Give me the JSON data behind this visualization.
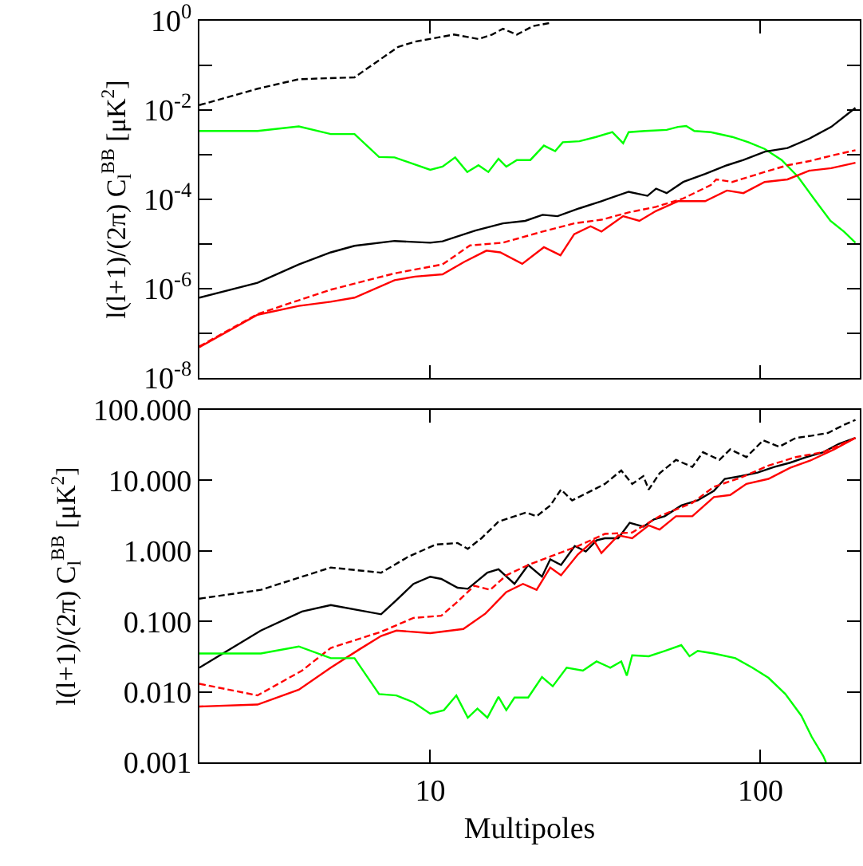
{
  "chart_data": [
    {
      "type": "line",
      "ylabel": "l(l+1)/(2π) C$_{l}$$^{BB}$ [μK$^{2}$]",
      "log": "xy",
      "grid": false,
      "tick_labels": "y",
      "marker": "none",
      "xlim": [
        2,
        200
      ],
      "ylim": [
        1e-08,
        1
      ],
      "xticks": [
        {
          "value": 10,
          "label": null
        },
        {
          "value": 100,
          "label": null
        }
      ],
      "yticks": [
        {
          "value": 1e-08,
          "label": "10$^{-8}$"
        },
        {
          "value": 1e-07,
          "label": null
        },
        {
          "value": 1e-06,
          "label": "10$^{-6}$"
        },
        {
          "value": 1e-05,
          "label": null
        },
        {
          "value": 0.0001,
          "label": "10$^{-4}$"
        },
        {
          "value": 0.001,
          "label": null
        },
        {
          "value": 0.01,
          "label": "10$^{-2}$"
        },
        {
          "value": 0.1,
          "label": null
        },
        {
          "value": 1,
          "label": "10$^{0}$"
        }
      ],
      "series": [
        {
          "color": "#000000",
          "line_style": "dashed",
          "x": [
            2,
            3,
            4,
            5.9,
            8,
            9,
            11.8,
            14,
            15.4,
            16.6,
            18.3,
            20.5,
            23.4
          ],
          "values": [
            0.0129,
            0.03,
            0.049,
            0.054,
            0.26,
            0.34,
            0.49,
            0.39,
            0.49,
            0.66,
            0.49,
            0.76,
            0.91
          ]
        },
        {
          "color": "#00ff00",
          "line_style": "solid",
          "x": [
            2,
            3,
            4,
            5,
            5.9,
            7,
            7.8,
            10,
            10.9,
            11.9,
            12.95,
            14,
            15,
            16.1,
            17,
            18.3,
            20.1,
            22.1,
            23.9,
            25.2,
            28.3,
            31.8,
            35.6,
            38.4,
            39.9,
            44.7,
            52,
            56.3,
            59.6,
            63.1,
            70.8,
            82.2,
            92,
            103,
            116,
            130,
            145,
            163,
            179,
            194
          ],
          "values": [
            0.0034,
            0.0034,
            0.0043,
            0.0029,
            0.0029,
            0.00089,
            0.00087,
            0.00046,
            0.00054,
            0.00087,
            0.00041,
            0.00058,
            0.00041,
            0.00081,
            0.00054,
            0.00076,
            0.00076,
            0.0016,
            0.0012,
            0.0019,
            0.002,
            0.0025,
            0.0032,
            0.0018,
            0.0032,
            0.0034,
            0.0036,
            0.0042,
            0.0044,
            0.0034,
            0.0032,
            0.0025,
            0.0019,
            0.00135,
            0.00076,
            0.00032,
            0.000105,
            3.3e-05,
            1.9e-05,
            1.07e-05
          ]
        },
        {
          "color": "#000000",
          "line_style": "solid",
          "x": [
            2,
            3,
            4,
            5,
            5.9,
            7.8,
            10,
            10.9,
            13.7,
            16.6,
            19.4,
            21.9,
            24.3,
            28.3,
            33,
            39.9,
            45.5,
            48.3,
            52,
            58.4,
            68,
            79.2,
            88.8,
            103.3,
            120.8,
            140.8,
            163.9,
            194
          ],
          "values": [
            6.3e-07,
            1.35e-06,
            3.5e-06,
            6.5e-06,
            9.1e-06,
            1.17e-05,
            1.07e-05,
            1.15e-05,
            2e-05,
            2.9e-05,
            3.3e-05,
            4.5e-05,
            4.2e-05,
            6.3e-05,
            9.1e-05,
            0.000148,
            0.00012,
            0.000174,
            0.000138,
            0.000245,
            0.00037,
            0.00058,
            0.00076,
            0.00117,
            0.00141,
            0.0023,
            0.0042,
            0.0112
          ]
        },
        {
          "color": "#ff0000",
          "line_style": "dashed",
          "x": [
            2,
            3,
            4,
            5,
            7.8,
            10.9,
            13.2,
            16.6,
            21.9,
            27.3,
            33,
            39.9,
            48.3,
            58.4,
            70.8,
            73.5,
            82.2,
            103,
            120.8,
            140.8,
            163.9,
            194
          ],
          "values": [
            5.1e-08,
            2.7e-07,
            5.5e-07,
            9.5e-07,
            2.2e-06,
            3.5e-06,
            9.3e-06,
            1.07e-05,
            1.9e-05,
            2.9e-05,
            3.5e-05,
            5.1e-05,
            6.8e-05,
            0.000105,
            0.00021,
            0.00028,
            0.000245,
            0.00041,
            0.00058,
            0.00072,
            0.00095,
            0.00126
          ]
        },
        {
          "color": "#ff0000",
          "line_style": "solid",
          "x": [
            2,
            3,
            4,
            5,
            5.9,
            7.8,
            9,
            10.9,
            12.7,
            14.8,
            16.3,
            19,
            22.1,
            24.8,
            27.3,
            30.6,
            33,
            38.4,
            43,
            48.3,
            56.3,
            68,
            79.2,
            88.8,
            103,
            120.8,
            140.8,
            163.9,
            194
          ],
          "values": [
            4.9e-08,
            2.6e-07,
            4.1e-07,
            5.1e-07,
            6.3e-07,
            1.55e-06,
            1.86e-06,
            2.1e-06,
            4e-06,
            7.1e-06,
            6.5e-06,
            3.6e-06,
            8.5e-06,
            5.6e-06,
            1.66e-05,
            2.5e-05,
            1.9e-05,
            4.2e-05,
            3.3e-05,
            5.5e-05,
            9.1e-05,
            9.1e-05,
            0.000158,
            0.000138,
            0.000245,
            0.00028,
            0.00044,
            0.0005,
            0.00066
          ]
        }
      ]
    },
    {
      "type": "line",
      "xlabel": "Multipoles",
      "ylabel": "l(l+1)/(2π) C$_{l}$$^{BB}$ [μK$^{2}$]",
      "log": "xy",
      "grid": false,
      "marker": "none",
      "xlim": [
        2,
        200
      ],
      "ylim": [
        0.001,
        100
      ],
      "xticks": [
        10,
        100
      ],
      "yticks": [
        {
          "value": 0.001,
          "label": "0.001"
        },
        {
          "value": 0.01,
          "label": "0.010"
        },
        {
          "value": 0.1,
          "label": "0.100"
        },
        {
          "value": 1,
          "label": "1.000"
        },
        {
          "value": 10,
          "label": "10.000"
        },
        {
          "value": 100,
          "label": "100.000"
        }
      ],
      "series": [
        {
          "color": "#000000",
          "line_style": "dashed",
          "x": [
            2,
            3.07,
            4.09,
            5,
            7.1,
            8.6,
            10.4,
            12.1,
            13,
            14.3,
            16.1,
            19.5,
            21,
            23.1,
            24.9,
            26.9,
            30.2,
            33.8,
            37.9,
            40.9,
            44.2,
            45.9,
            49.5,
            55.5,
            62.2,
            67,
            75.1,
            81,
            90.7,
            101.9,
            114,
            128,
            143,
            160,
            180,
            194
          ],
          "values": [
            0.21,
            0.28,
            0.43,
            0.58,
            0.49,
            0.83,
            1.23,
            1.29,
            1.07,
            1.51,
            2.6,
            3.5,
            3.1,
            4.4,
            7.4,
            5.2,
            6.8,
            8.9,
            13.8,
            8.9,
            11.5,
            7.4,
            12.6,
            19.5,
            15.5,
            25.1,
            19.5,
            27.5,
            21.4,
            37,
            30,
            40,
            43,
            47,
            62,
            72
          ]
        },
        {
          "color": "#000000",
          "line_style": "solid",
          "x": [
            2,
            3.07,
            4.09,
            5,
            7.1,
            7.9,
            8.9,
            10,
            10.8,
            12.1,
            13,
            14.9,
            16.1,
            18,
            19.8,
            21.8,
            23.1,
            24.9,
            27.4,
            29.6,
            31.9,
            33.8,
            37.1,
            40.2,
            44.2,
            47.6,
            51.3,
            57.6,
            64.6,
            72.3,
            78,
            87.5,
            98.1,
            110,
            123,
            138,
            155,
            173,
            194
          ],
          "values": [
            0.022,
            0.074,
            0.138,
            0.17,
            0.126,
            0.2,
            0.34,
            0.43,
            0.4,
            0.3,
            0.29,
            0.49,
            0.55,
            0.34,
            0.63,
            0.43,
            0.76,
            0.63,
            1.17,
            0.98,
            1.41,
            1.51,
            1.51,
            2.5,
            2.2,
            2.8,
            3.1,
            4.4,
            5.2,
            7.1,
            10.5,
            11.5,
            12.9,
            15.5,
            17.8,
            21.4,
            25.1,
            33,
            40
          ]
        },
        {
          "color": "#ff0000",
          "line_style": "dashed",
          "x": [
            2,
            3,
            4.09,
            5,
            7.1,
            8.9,
            10.8,
            12.1,
            13.6,
            15.2,
            17,
            19.8,
            23.1,
            28,
            33.8,
            40.9,
            49.5,
            62.2,
            72.3,
            87.5,
            105.8,
            128,
            155,
            194
          ],
          "values": [
            0.013,
            0.0089,
            0.02,
            0.042,
            0.071,
            0.112,
            0.12,
            0.19,
            0.32,
            0.28,
            0.45,
            0.63,
            0.83,
            1.17,
            1.74,
            1.82,
            3.1,
            4.8,
            8.1,
            11.0,
            16.2,
            21.4,
            25.1,
            40
          ]
        },
        {
          "color": "#ff0000",
          "line_style": "solid",
          "x": [
            2,
            3,
            4,
            5,
            6.1,
            7.1,
            7.9,
            10,
            12.6,
            14.7,
            17,
            19.1,
            21,
            23.1,
            24.9,
            28,
            31.3,
            33,
            37.1,
            40.9,
            45.9,
            49.5,
            55.5,
            62.2,
            72.3,
            81,
            90.7,
            105.8,
            123,
            143,
            167,
            194
          ],
          "values": [
            0.0062,
            0.0066,
            0.0107,
            0.022,
            0.04,
            0.062,
            0.074,
            0.068,
            0.078,
            0.129,
            0.26,
            0.34,
            0.28,
            0.58,
            0.45,
            0.89,
            1.41,
            0.93,
            1.66,
            1.51,
            2.3,
            2.0,
            3.1,
            3.1,
            5.8,
            6.2,
            8.9,
            10.5,
            15.1,
            19.5,
            27.5,
            40
          ]
        },
        {
          "color": "#00ff00",
          "line_style": "solid",
          "x": [
            2,
            3.07,
            4,
            5,
            5.9,
            7,
            7.9,
            8.9,
            10,
            11,
            12,
            13,
            13.9,
            14.9,
            16.1,
            17,
            18,
            19.8,
            21.8,
            23.5,
            25.9,
            29,
            31.9,
            35.1,
            37.9,
            39.4,
            40.9,
            45.9,
            51.3,
            57.6,
            61,
            64.6,
            72.3,
            84,
            94.5,
            105.8,
            119,
            133,
            143,
            155,
            158
          ],
          "values": [
            0.035,
            0.035,
            0.044,
            0.03,
            0.03,
            0.0093,
            0.0089,
            0.0071,
            0.0049,
            0.0055,
            0.0089,
            0.0043,
            0.0058,
            0.0043,
            0.0085,
            0.0055,
            0.0083,
            0.0083,
            0.0162,
            0.012,
            0.022,
            0.02,
            0.027,
            0.022,
            0.027,
            0.017,
            0.033,
            0.032,
            0.038,
            0.046,
            0.032,
            0.038,
            0.035,
            0.03,
            0.022,
            0.0158,
            0.0093,
            0.0046,
            0.0023,
            0.00123,
            0.001
          ]
        }
      ]
    }
  ]
}
